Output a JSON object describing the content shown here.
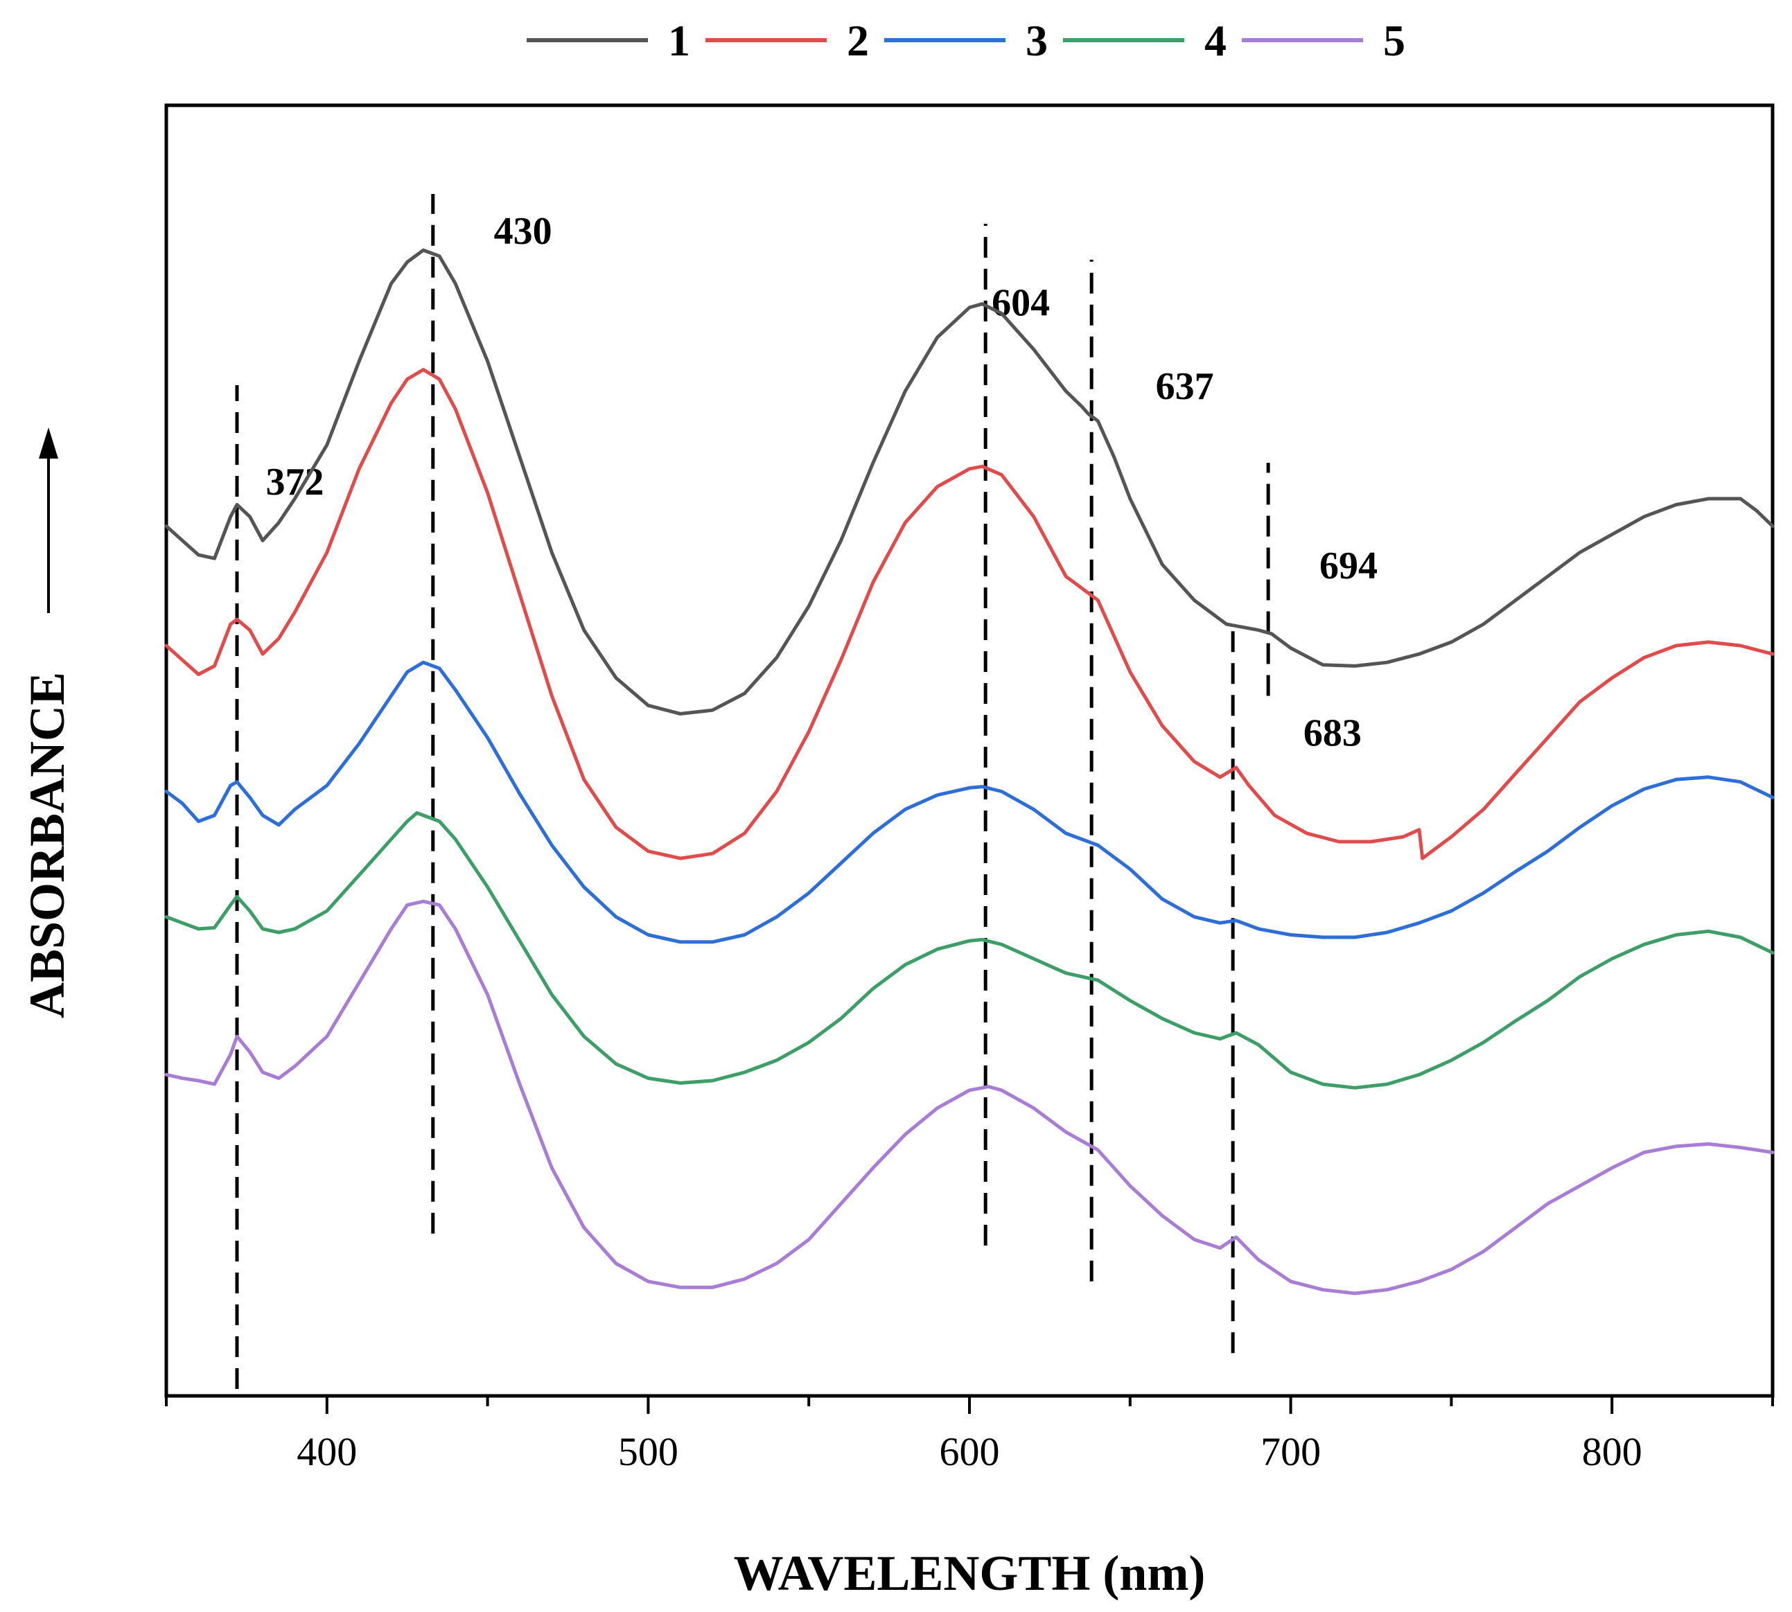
{
  "chart_data": {
    "type": "line",
    "title": "",
    "xlabel": "WAVELENGTH (nm)",
    "ylabel": "ABSORBANCE",
    "xlim": [
      350,
      850
    ],
    "ylim": [
      0,
      100
    ],
    "xticks_major": [
      400,
      500,
      600,
      700,
      800
    ],
    "xticks_minor": [
      350,
      450,
      550,
      650,
      750,
      850
    ],
    "yticks": [],
    "grid": false,
    "legend_position": "top-center",
    "series": [
      {
        "name": "1",
        "color": "#555555",
        "points": [
          [
            350,
            72.2
          ],
          [
            355,
            71.0
          ],
          [
            360,
            69.8
          ],
          [
            365,
            69.5
          ],
          [
            370,
            73.0
          ],
          [
            372,
            74.0
          ],
          [
            376,
            73.0
          ],
          [
            380,
            71.0
          ],
          [
            385,
            72.5
          ],
          [
            390,
            74.5
          ],
          [
            400,
            79
          ],
          [
            410,
            86
          ],
          [
            420,
            92.5
          ],
          [
            425,
            94.3
          ],
          [
            430,
            95.3
          ],
          [
            435,
            94.8
          ],
          [
            440,
            92.5
          ],
          [
            450,
            86
          ],
          [
            460,
            78
          ],
          [
            470,
            70
          ],
          [
            480,
            63.5
          ],
          [
            490,
            59.5
          ],
          [
            500,
            57.2
          ],
          [
            510,
            56.5
          ],
          [
            520,
            56.8
          ],
          [
            530,
            58.2
          ],
          [
            540,
            61.2
          ],
          [
            550,
            65.5
          ],
          [
            560,
            71
          ],
          [
            570,
            77.5
          ],
          [
            580,
            83.5
          ],
          [
            590,
            88
          ],
          [
            600,
            90.5
          ],
          [
            604,
            90.8
          ],
          [
            610,
            90
          ],
          [
            620,
            87
          ],
          [
            630,
            83.5
          ],
          [
            635,
            82.2
          ],
          [
            637,
            81.6
          ],
          [
            640,
            81
          ],
          [
            645,
            78
          ],
          [
            650,
            74.5
          ],
          [
            660,
            69
          ],
          [
            670,
            66
          ],
          [
            680,
            64
          ],
          [
            690,
            63.5
          ],
          [
            694,
            63.2
          ],
          [
            700,
            62
          ],
          [
            710,
            60.6
          ],
          [
            720,
            60.5
          ],
          [
            730,
            60.8
          ],
          [
            740,
            61.5
          ],
          [
            750,
            62.5
          ],
          [
            760,
            64
          ],
          [
            770,
            66
          ],
          [
            780,
            68
          ],
          [
            790,
            70
          ],
          [
            800,
            71.5
          ],
          [
            810,
            73
          ],
          [
            820,
            74
          ],
          [
            830,
            74.5
          ],
          [
            840,
            74.5
          ],
          [
            845,
            73.5
          ],
          [
            850,
            72.2
          ]
        ]
      },
      {
        "name": "2",
        "color": "#e04b4b",
        "points": [
          [
            350,
            62.2
          ],
          [
            355,
            61
          ],
          [
            360,
            59.8
          ],
          [
            365,
            60.5
          ],
          [
            370,
            64
          ],
          [
            372,
            64.4
          ],
          [
            376,
            63.5
          ],
          [
            380,
            61.5
          ],
          [
            385,
            62.8
          ],
          [
            390,
            65
          ],
          [
            400,
            70
          ],
          [
            410,
            77
          ],
          [
            420,
            82.5
          ],
          [
            425,
            84.5
          ],
          [
            430,
            85.3
          ],
          [
            435,
            84.5
          ],
          [
            440,
            82
          ],
          [
            450,
            75
          ],
          [
            460,
            66.5
          ],
          [
            470,
            58
          ],
          [
            480,
            51
          ],
          [
            490,
            47
          ],
          [
            500,
            45
          ],
          [
            510,
            44.4
          ],
          [
            520,
            44.8
          ],
          [
            530,
            46.5
          ],
          [
            540,
            50
          ],
          [
            550,
            55
          ],
          [
            560,
            61
          ],
          [
            570,
            67.5
          ],
          [
            580,
            72.5
          ],
          [
            590,
            75.5
          ],
          [
            600,
            77
          ],
          [
            604,
            77.2
          ],
          [
            610,
            76.5
          ],
          [
            620,
            73
          ],
          [
            630,
            68
          ],
          [
            635,
            67
          ],
          [
            640,
            66
          ],
          [
            650,
            60
          ],
          [
            660,
            55.5
          ],
          [
            670,
            52.5
          ],
          [
            678,
            51.2
          ],
          [
            683,
            52
          ],
          [
            687,
            50.5
          ],
          [
            695,
            48
          ],
          [
            705,
            46.5
          ],
          [
            715,
            45.8
          ],
          [
            725,
            45.8
          ],
          [
            735,
            46.2
          ],
          [
            740,
            46.8
          ],
          [
            741,
            44.4
          ],
          [
            745,
            45.2
          ],
          [
            750,
            46.2
          ],
          [
            760,
            48.5
          ],
          [
            770,
            51.5
          ],
          [
            780,
            54.5
          ],
          [
            790,
            57.5
          ],
          [
            800,
            59.5
          ],
          [
            810,
            61.2
          ],
          [
            820,
            62.2
          ],
          [
            830,
            62.5
          ],
          [
            840,
            62.2
          ],
          [
            850,
            61.5
          ]
        ]
      },
      {
        "name": "3",
        "color": "#2d6fd6",
        "points": [
          [
            350,
            50
          ],
          [
            355,
            49
          ],
          [
            360,
            47.5
          ],
          [
            365,
            48
          ],
          [
            370,
            50.5
          ],
          [
            372,
            50.8
          ],
          [
            376,
            49.5
          ],
          [
            380,
            48
          ],
          [
            385,
            47.2
          ],
          [
            390,
            48.5
          ],
          [
            400,
            50.5
          ],
          [
            410,
            54
          ],
          [
            420,
            58
          ],
          [
            425,
            60
          ],
          [
            430,
            60.8
          ],
          [
            435,
            60.3
          ],
          [
            440,
            58.5
          ],
          [
            450,
            54.5
          ],
          [
            460,
            49.8
          ],
          [
            470,
            45.5
          ],
          [
            480,
            42
          ],
          [
            490,
            39.5
          ],
          [
            500,
            38
          ],
          [
            510,
            37.4
          ],
          [
            520,
            37.4
          ],
          [
            530,
            38
          ],
          [
            540,
            39.5
          ],
          [
            550,
            41.5
          ],
          [
            560,
            44
          ],
          [
            570,
            46.5
          ],
          [
            580,
            48.5
          ],
          [
            590,
            49.7
          ],
          [
            600,
            50.3
          ],
          [
            604,
            50.4
          ],
          [
            610,
            50
          ],
          [
            620,
            48.5
          ],
          [
            630,
            46.5
          ],
          [
            640,
            45.5
          ],
          [
            650,
            43.5
          ],
          [
            660,
            41
          ],
          [
            670,
            39.5
          ],
          [
            678,
            39
          ],
          [
            683,
            39.2
          ],
          [
            690,
            38.5
          ],
          [
            700,
            38
          ],
          [
            710,
            37.8
          ],
          [
            720,
            37.8
          ],
          [
            730,
            38.2
          ],
          [
            740,
            39
          ],
          [
            750,
            40
          ],
          [
            760,
            41.5
          ],
          [
            770,
            43.3
          ],
          [
            780,
            45
          ],
          [
            790,
            47
          ],
          [
            800,
            48.8
          ],
          [
            810,
            50.2
          ],
          [
            820,
            51
          ],
          [
            830,
            51.2
          ],
          [
            840,
            50.8
          ],
          [
            850,
            49.5
          ]
        ]
      },
      {
        "name": "4",
        "color": "#3e9e68",
        "points": [
          [
            350,
            39.5
          ],
          [
            355,
            39
          ],
          [
            360,
            38.5
          ],
          [
            365,
            38.6
          ],
          [
            370,
            40.5
          ],
          [
            372,
            41.2
          ],
          [
            376,
            40
          ],
          [
            380,
            38.5
          ],
          [
            385,
            38.2
          ],
          [
            390,
            38.5
          ],
          [
            400,
            40
          ],
          [
            410,
            43
          ],
          [
            420,
            46
          ],
          [
            425,
            47.5
          ],
          [
            428,
            48.2
          ],
          [
            435,
            47.5
          ],
          [
            440,
            46
          ],
          [
            450,
            42
          ],
          [
            460,
            37.5
          ],
          [
            470,
            33
          ],
          [
            480,
            29.5
          ],
          [
            490,
            27.2
          ],
          [
            500,
            26
          ],
          [
            510,
            25.6
          ],
          [
            520,
            25.8
          ],
          [
            530,
            26.5
          ],
          [
            540,
            27.5
          ],
          [
            550,
            29
          ],
          [
            560,
            31
          ],
          [
            570,
            33.5
          ],
          [
            580,
            35.5
          ],
          [
            590,
            36.8
          ],
          [
            600,
            37.5
          ],
          [
            604,
            37.6
          ],
          [
            610,
            37.2
          ],
          [
            620,
            36
          ],
          [
            630,
            34.8
          ],
          [
            640,
            34.2
          ],
          [
            650,
            32.5
          ],
          [
            660,
            31
          ],
          [
            670,
            29.8
          ],
          [
            678,
            29.3
          ],
          [
            683,
            29.8
          ],
          [
            690,
            28.8
          ],
          [
            700,
            26.5
          ],
          [
            710,
            25.5
          ],
          [
            720,
            25.2
          ],
          [
            730,
            25.5
          ],
          [
            740,
            26.3
          ],
          [
            750,
            27.5
          ],
          [
            760,
            29
          ],
          [
            770,
            30.8
          ],
          [
            780,
            32.5
          ],
          [
            790,
            34.5
          ],
          [
            800,
            36
          ],
          [
            810,
            37.2
          ],
          [
            820,
            38
          ],
          [
            830,
            38.3
          ],
          [
            840,
            37.8
          ],
          [
            850,
            36.5
          ]
        ]
      },
      {
        "name": "5",
        "color": "#a87dd6",
        "points": [
          [
            350,
            26.3
          ],
          [
            355,
            26
          ],
          [
            360,
            25.8
          ],
          [
            365,
            25.5
          ],
          [
            370,
            28
          ],
          [
            372,
            29.5
          ],
          [
            376,
            28.2
          ],
          [
            380,
            26.5
          ],
          [
            385,
            26
          ],
          [
            390,
            27
          ],
          [
            400,
            29.5
          ],
          [
            410,
            34
          ],
          [
            420,
            38.5
          ],
          [
            425,
            40.5
          ],
          [
            430,
            40.8
          ],
          [
            435,
            40.5
          ],
          [
            440,
            38.5
          ],
          [
            450,
            33
          ],
          [
            460,
            25.5
          ],
          [
            470,
            18.5
          ],
          [
            480,
            13.5
          ],
          [
            490,
            10.5
          ],
          [
            500,
            9
          ],
          [
            510,
            8.5
          ],
          [
            520,
            8.5
          ],
          [
            530,
            9.2
          ],
          [
            540,
            10.5
          ],
          [
            550,
            12.5
          ],
          [
            560,
            15.5
          ],
          [
            570,
            18.5
          ],
          [
            580,
            21.3
          ],
          [
            590,
            23.5
          ],
          [
            600,
            25
          ],
          [
            606,
            25.3
          ],
          [
            610,
            25
          ],
          [
            620,
            23.5
          ],
          [
            630,
            21.5
          ],
          [
            640,
            20
          ],
          [
            650,
            17
          ],
          [
            660,
            14.5
          ],
          [
            670,
            12.5
          ],
          [
            678,
            11.8
          ],
          [
            683,
            12.7
          ],
          [
            690,
            10.8
          ],
          [
            700,
            9
          ],
          [
            710,
            8.3
          ],
          [
            720,
            8
          ],
          [
            730,
            8.3
          ],
          [
            740,
            9
          ],
          [
            750,
            10
          ],
          [
            760,
            11.5
          ],
          [
            770,
            13.5
          ],
          [
            780,
            15.5
          ],
          [
            790,
            17
          ],
          [
            800,
            18.5
          ],
          [
            810,
            19.8
          ],
          [
            820,
            20.3
          ],
          [
            830,
            20.5
          ],
          [
            840,
            20.2
          ],
          [
            850,
            19.8
          ]
        ]
      }
    ],
    "annotations": [
      {
        "label": "372",
        "x": 372,
        "line_y": [
          0,
          84
        ],
        "label_x": 390,
        "label_y": 76
      },
      {
        "label": "430",
        "x": 433,
        "line_y": [
          13,
          100
        ],
        "label_x": 461,
        "label_y": 97
      },
      {
        "label": "604",
        "x": 605,
        "line_y": [
          12,
          97.5
        ],
        "label_x": 616,
        "label_y": 91
      },
      {
        "label": "637",
        "x": 638,
        "line_y": [
          9,
          94.5
        ],
        "label_x": 667,
        "label_y": 84
      },
      {
        "label": "694",
        "x": 693,
        "line_y": [
          58,
          77.5
        ],
        "label_x": 718,
        "label_y": 69
      },
      {
        "label": "683",
        "x": 682,
        "line_y": [
          3,
          63.5
        ],
        "label_x": 713,
        "label_y": 55
      }
    ]
  }
}
